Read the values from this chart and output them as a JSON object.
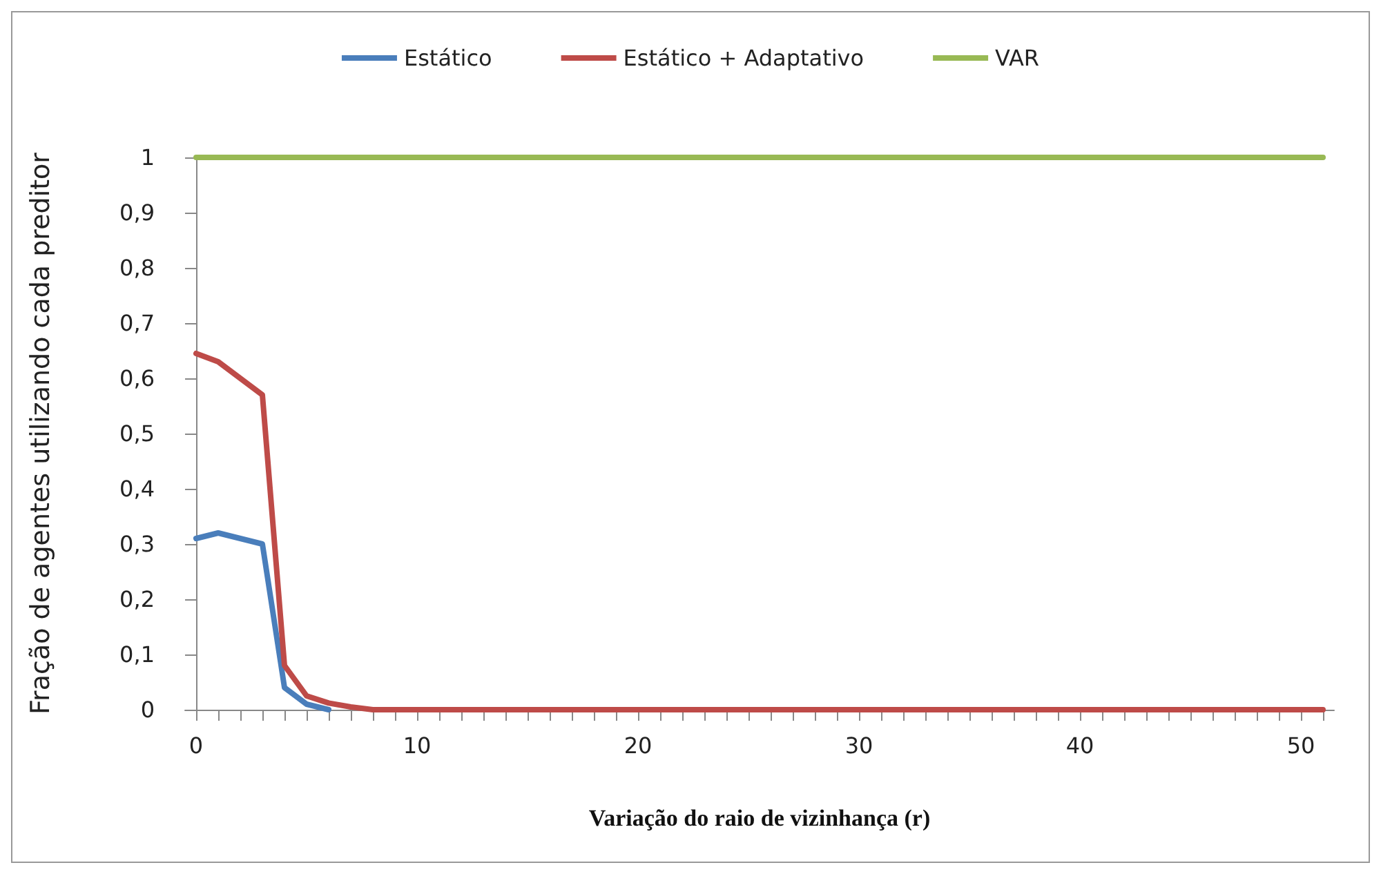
{
  "chart_data": {
    "type": "line",
    "xlabel": "Variação do raio de vizinhança (r)",
    "ylabel": "Fração de agentes utilizando cada preditor",
    "xlim": [
      -0.5,
      51.5
    ],
    "xticks": [
      0,
      10,
      20,
      30,
      40,
      50
    ],
    "ylim": [
      0,
      1
    ],
    "yticks": [
      0,
      {
        "value": 0.1,
        "label": "0,1"
      },
      {
        "value": 0.2,
        "label": "0,2"
      },
      {
        "value": 0.3,
        "label": "0,3"
      },
      {
        "value": 0.4,
        "label": "0,4"
      },
      {
        "value": 0.5,
        "label": "0,5"
      },
      {
        "value": 0.6,
        "label": "0,6"
      },
      {
        "value": 0.7,
        "label": "0,7"
      },
      {
        "value": 0.8,
        "label": "0,8"
      },
      {
        "value": 0.9,
        "label": "0,9"
      },
      1
    ],
    "grid": false,
    "legend": "top",
    "marker": "none",
    "line_style": "solid",
    "series": [
      {
        "name": "Estático",
        "color": "#4a7ebb",
        "x": [
          0,
          1,
          2,
          3,
          4,
          5,
          6
        ],
        "values": [
          0.31,
          0.32,
          0.31,
          0.3,
          0.04,
          0.01,
          0
        ]
      },
      {
        "name": "Estático + Adaptativo",
        "color": "#be4b48",
        "x": [
          0,
          1,
          2,
          3,
          4,
          5,
          6,
          7,
          8,
          51
        ],
        "values": [
          0.645,
          0.63,
          0.6,
          0.57,
          0.08,
          0.025,
          0.012,
          0.005,
          0,
          0
        ]
      },
      {
        "name": "VAR",
        "color": "#98b954",
        "x": [
          0,
          51
        ],
        "values": [
          1,
          1
        ]
      }
    ]
  }
}
